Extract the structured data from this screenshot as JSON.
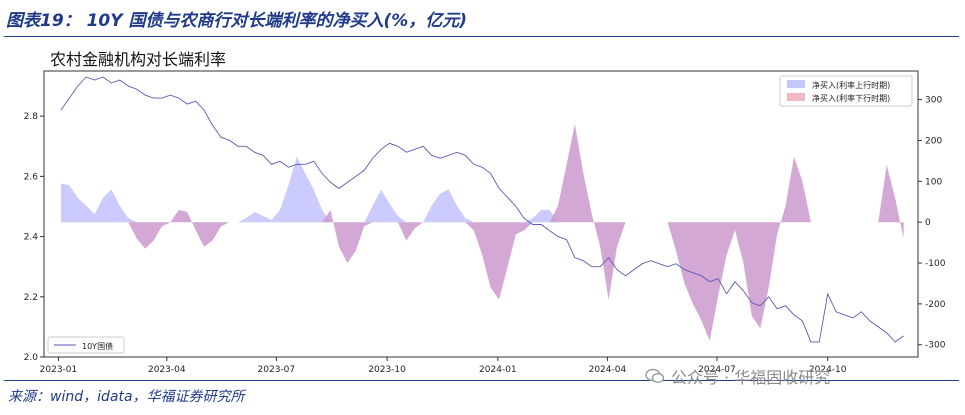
{
  "figure": {
    "title": "图表19： 10Y 国债与农商行对长端利率的净买入(%，亿元)",
    "source": "来源：wind，idata，华福证券研究所",
    "watermark": "公众号 · 华福固收研究"
  },
  "chart_data": {
    "type": "area",
    "title": "农村金融机构对长端利率",
    "x_ticks": [
      "2023-01",
      "2023-04",
      "2023-07",
      "2023-10",
      "2024-01",
      "2024-04",
      "2024-07",
      "2024-10"
    ],
    "y_left": {
      "ticks": [
        2.0,
        2.2,
        2.4,
        2.6,
        2.8
      ],
      "range": [
        2.0,
        2.95
      ]
    },
    "y_right": {
      "ticks": [
        -300,
        -200,
        -100,
        0,
        100,
        200,
        300
      ],
      "range": [
        -330,
        370
      ]
    },
    "legend": {
      "position": "top-right",
      "entries": [
        {
          "label": "净买入(利率上行时期)",
          "color": "#c7c7ff"
        },
        {
          "label": "净买入(利率下行时期)",
          "color": "#f2b9c5"
        }
      ]
    },
    "line_legend": {
      "position": "bottom-left",
      "label": "10Y国债",
      "color": "#5a5ab8"
    },
    "colors": {
      "up": "#c8c8ff",
      "down": "#cc99cc",
      "line": "#5a5ab8"
    },
    "series": [
      {
        "name": "10Y国债",
        "axis": "left",
        "x": [
          "2023-01-03",
          "2023-01-10",
          "2023-01-17",
          "2023-01-24",
          "2023-01-31",
          "2023-02-07",
          "2023-02-14",
          "2023-02-21",
          "2023-02-28",
          "2023-03-07",
          "2023-03-14",
          "2023-03-21",
          "2023-03-28",
          "2023-04-04",
          "2023-04-11",
          "2023-04-18",
          "2023-04-25",
          "2023-05-02",
          "2023-05-09",
          "2023-05-16",
          "2023-05-23",
          "2023-05-30",
          "2023-06-06",
          "2023-06-13",
          "2023-06-20",
          "2023-06-27",
          "2023-07-04",
          "2023-07-11",
          "2023-07-18",
          "2023-07-25",
          "2023-08-01",
          "2023-08-08",
          "2023-08-15",
          "2023-08-22",
          "2023-08-29",
          "2023-09-05",
          "2023-09-12",
          "2023-09-19",
          "2023-09-26",
          "2023-10-03",
          "2023-10-10",
          "2023-10-17",
          "2023-10-24",
          "2023-10-31",
          "2023-11-07",
          "2023-11-14",
          "2023-11-21",
          "2023-11-28",
          "2023-12-05",
          "2023-12-12",
          "2023-12-19",
          "2023-12-26",
          "2024-01-02",
          "2024-01-09",
          "2024-01-16",
          "2024-01-23",
          "2024-01-30",
          "2024-02-06",
          "2024-02-13",
          "2024-02-20",
          "2024-02-27",
          "2024-03-05",
          "2024-03-12",
          "2024-03-19",
          "2024-03-26",
          "2024-04-02",
          "2024-04-09",
          "2024-04-16",
          "2024-04-23",
          "2024-04-30",
          "2024-05-07",
          "2024-05-14",
          "2024-05-21",
          "2024-05-28",
          "2024-06-04",
          "2024-06-11",
          "2024-06-18",
          "2024-06-25",
          "2024-07-02",
          "2024-07-09",
          "2024-07-16",
          "2024-07-23",
          "2024-07-30",
          "2024-08-06",
          "2024-08-13",
          "2024-08-20",
          "2024-08-27",
          "2024-09-03",
          "2024-09-10",
          "2024-09-17",
          "2024-09-24",
          "2024-10-01",
          "2024-10-08",
          "2024-10-15",
          "2024-10-22",
          "2024-10-29",
          "2024-11-05",
          "2024-11-12",
          "2024-11-19",
          "2024-11-26",
          "2024-12-03"
        ],
        "values": [
          2.82,
          2.86,
          2.9,
          2.93,
          2.92,
          2.93,
          2.91,
          2.92,
          2.9,
          2.89,
          2.87,
          2.86,
          2.86,
          2.87,
          2.86,
          2.84,
          2.85,
          2.82,
          2.77,
          2.73,
          2.72,
          2.7,
          2.7,
          2.68,
          2.67,
          2.64,
          2.65,
          2.63,
          2.64,
          2.64,
          2.65,
          2.61,
          2.58,
          2.56,
          2.58,
          2.6,
          2.62,
          2.66,
          2.69,
          2.71,
          2.7,
          2.68,
          2.69,
          2.7,
          2.67,
          2.66,
          2.67,
          2.68,
          2.67,
          2.64,
          2.63,
          2.61,
          2.56,
          2.53,
          2.5,
          2.46,
          2.44,
          2.44,
          2.42,
          2.4,
          2.39,
          2.33,
          2.32,
          2.3,
          2.3,
          2.33,
          2.29,
          2.27,
          2.29,
          2.31,
          2.32,
          2.31,
          2.3,
          2.31,
          2.29,
          2.28,
          2.27,
          2.25,
          2.26,
          2.21,
          2.25,
          2.22,
          2.18,
          2.17,
          2.2,
          2.16,
          2.17,
          2.14,
          2.12,
          2.05,
          2.05,
          2.21,
          2.15,
          2.14,
          2.13,
          2.15,
          2.12,
          2.1,
          2.08,
          2.05,
          2.07
        ]
      },
      {
        "name": "净买入(利率上行时期)",
        "axis": "right",
        "x": [
          "2023-01-03",
          "2023-01-10",
          "2023-01-17",
          "2023-01-24",
          "2023-01-31",
          "2023-02-07",
          "2023-02-14",
          "2023-02-21",
          "2023-02-28",
          "2023-03-07",
          "2023-03-14",
          "2023-03-21",
          "2023-03-28",
          "2023-04-04",
          "2023-04-11",
          "2023-04-18",
          "2023-04-25",
          "2023-05-02",
          "2023-05-09",
          "2023-05-16",
          "2023-05-23",
          "2023-05-30",
          "2023-06-06",
          "2023-06-13",
          "2023-06-20",
          "2023-06-27",
          "2023-07-04",
          "2023-07-11",
          "2023-07-18",
          "2023-07-25",
          "2023-08-01",
          "2023-08-08",
          "2023-08-15",
          "2023-08-22",
          "2023-08-29",
          "2023-09-05",
          "2023-09-12",
          "2023-09-19",
          "2023-09-26",
          "2023-10-03",
          "2023-10-10",
          "2023-10-17",
          "2023-10-24",
          "2023-10-31",
          "2023-11-07",
          "2023-11-14",
          "2023-11-21",
          "2023-11-28",
          "2023-12-05",
          "2023-12-12",
          "2023-12-19",
          "2023-12-26",
          "2024-01-02",
          "2024-01-09",
          "2024-01-16",
          "2024-01-23",
          "2024-01-30",
          "2024-02-06",
          "2024-02-13",
          "2024-02-20",
          "2024-02-27",
          "2024-03-05",
          "2024-03-12",
          "2024-03-19",
          "2024-03-26",
          "2024-04-02",
          "2024-04-09",
          "2024-04-16",
          "2024-04-23",
          "2024-04-30",
          "2024-05-07",
          "2024-05-14",
          "2024-05-21",
          "2024-05-28",
          "2024-06-04",
          "2024-06-11",
          "2024-06-18",
          "2024-06-25",
          "2024-07-02",
          "2024-07-09",
          "2024-07-16",
          "2024-07-23",
          "2024-07-30",
          "2024-08-06",
          "2024-08-13",
          "2024-08-20",
          "2024-08-27",
          "2024-09-03",
          "2024-09-10",
          "2024-09-17",
          "2024-09-24",
          "2024-10-01",
          "2024-10-08",
          "2024-10-15",
          "2024-10-22",
          "2024-10-29",
          "2024-11-05",
          "2024-11-12",
          "2024-11-19",
          "2024-11-26",
          "2024-12-03"
        ],
        "values": [
          95,
          90,
          60,
          40,
          20,
          60,
          80,
          40,
          10,
          0,
          0,
          0,
          0,
          0,
          0,
          0,
          0,
          0,
          0,
          0,
          0,
          0,
          10,
          25,
          15,
          5,
          30,
          90,
          160,
          120,
          80,
          30,
          0,
          0,
          0,
          0,
          0,
          40,
          80,
          45,
          15,
          0,
          0,
          0,
          40,
          70,
          80,
          40,
          10,
          0,
          0,
          0,
          0,
          0,
          0,
          0,
          10,
          30,
          30,
          0,
          0,
          0,
          0,
          0,
          0,
          0,
          0,
          0,
          0,
          0,
          0,
          0,
          0,
          0,
          0,
          0,
          0,
          0,
          0,
          0,
          0,
          0,
          0,
          0,
          0,
          0,
          0,
          0,
          0,
          0,
          0,
          0,
          0,
          0,
          0,
          0,
          0,
          0,
          0,
          0,
          0
        ]
      },
      {
        "name": "净买入(利率下行时期)",
        "axis": "right",
        "x": [
          "2023-01-03",
          "2023-01-10",
          "2023-01-17",
          "2023-01-24",
          "2023-01-31",
          "2023-02-07",
          "2023-02-14",
          "2023-02-21",
          "2023-02-28",
          "2023-03-07",
          "2023-03-14",
          "2023-03-21",
          "2023-03-28",
          "2023-04-04",
          "2023-04-11",
          "2023-04-18",
          "2023-04-25",
          "2023-05-02",
          "2023-05-09",
          "2023-05-16",
          "2023-05-23",
          "2023-05-30",
          "2023-06-06",
          "2023-06-13",
          "2023-06-20",
          "2023-06-27",
          "2023-07-04",
          "2023-07-11",
          "2023-07-18",
          "2023-07-25",
          "2023-08-01",
          "2023-08-08",
          "2023-08-15",
          "2023-08-22",
          "2023-08-29",
          "2023-09-05",
          "2023-09-12",
          "2023-09-19",
          "2023-09-26",
          "2023-10-03",
          "2023-10-10",
          "2023-10-17",
          "2023-10-24",
          "2023-10-31",
          "2023-11-07",
          "2023-11-14",
          "2023-11-21",
          "2023-11-28",
          "2023-12-05",
          "2023-12-12",
          "2023-12-19",
          "2023-12-26",
          "2024-01-02",
          "2024-01-09",
          "2024-01-16",
          "2024-01-23",
          "2024-01-30",
          "2024-02-06",
          "2024-02-13",
          "2024-02-20",
          "2024-02-27",
          "2024-03-05",
          "2024-03-12",
          "2024-03-19",
          "2024-03-26",
          "2024-04-02",
          "2024-04-09",
          "2024-04-16",
          "2024-04-23",
          "2024-04-30",
          "2024-05-07",
          "2024-05-14",
          "2024-05-21",
          "2024-05-28",
          "2024-06-04",
          "2024-06-11",
          "2024-06-18",
          "2024-06-25",
          "2024-07-02",
          "2024-07-09",
          "2024-07-16",
          "2024-07-23",
          "2024-07-30",
          "2024-08-06",
          "2024-08-13",
          "2024-08-20",
          "2024-08-27",
          "2024-09-03",
          "2024-09-10",
          "2024-09-17",
          "2024-09-24",
          "2024-10-01",
          "2024-10-08",
          "2024-10-15",
          "2024-10-22",
          "2024-10-29",
          "2024-11-05",
          "2024-11-12",
          "2024-11-19",
          "2024-11-26",
          "2024-12-03"
        ],
        "values": [
          0,
          0,
          0,
          0,
          0,
          0,
          0,
          0,
          0,
          -40,
          -65,
          -45,
          -10,
          0,
          30,
          25,
          -20,
          -60,
          -45,
          -10,
          0,
          0,
          0,
          0,
          0,
          0,
          0,
          0,
          0,
          0,
          0,
          0,
          30,
          -60,
          -100,
          -70,
          -10,
          0,
          0,
          0,
          0,
          -45,
          -15,
          0,
          0,
          0,
          0,
          0,
          0,
          -20,
          -80,
          -160,
          -190,
          -110,
          -30,
          -20,
          0,
          0,
          0,
          40,
          140,
          240,
          120,
          20,
          -60,
          -190,
          -60,
          0,
          0,
          0,
          0,
          0,
          0,
          -70,
          -150,
          -200,
          -240,
          -290,
          -180,
          -80,
          -20,
          -100,
          -230,
          -260,
          -160,
          -30,
          40,
          160,
          100,
          0,
          0,
          0,
          0,
          0,
          0,
          0,
          0,
          0,
          140,
          60,
          -40
        ]
      }
    ]
  }
}
